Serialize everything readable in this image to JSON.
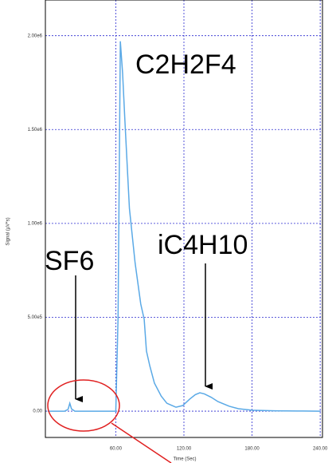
{
  "chart_data": {
    "type": "line",
    "x_label": "Time (Sec)",
    "y_label": "Signal (µV*s)",
    "x": [
      0,
      15,
      18,
      19.5,
      21,
      24,
      60,
      62,
      64,
      66,
      68,
      72,
      77,
      82,
      85,
      87,
      90,
      94,
      100,
      105,
      113,
      119,
      125,
      130,
      134,
      138,
      144,
      150,
      160,
      168,
      180,
      200,
      220,
      240
    ],
    "series": [
      {
        "color": "#5aa9e6",
        "values": [
          0,
          0,
          10000,
          42000,
          12000,
          0,
          0,
          500000,
          1970000,
          1800000,
          1550000,
          1080000,
          790000,
          570000,
          490000,
          320000,
          240000,
          150000,
          80000,
          42000,
          21000,
          30000,
          64000,
          88000,
          98000,
          92000,
          74000,
          51000,
          26000,
          13000,
          5000,
          2000,
          1000,
          0
        ]
      }
    ],
    "xlim": [
      -2,
      242
    ],
    "ylim": [
      -140000,
      2190000
    ],
    "xticks": [
      {
        "value": 60,
        "label": "60.00"
      },
      {
        "value": 120,
        "label": "120.00"
      },
      {
        "value": 180,
        "label": "180.00"
      },
      {
        "value": 240,
        "label": "240.00"
      }
    ],
    "yticks": [
      {
        "value": 0,
        "label": "0.00"
      },
      {
        "value": 500000,
        "label": "5.00e5"
      },
      {
        "value": 1000000,
        "label": "1.00e6"
      },
      {
        "value": 1500000,
        "label": "1.50e6"
      },
      {
        "value": 2000000,
        "label": "2.00e6"
      }
    ],
    "grid": true,
    "grid_color": "#2a2ad0",
    "annotations": [
      "C2H2F4",
      "SF6",
      "iC4H10"
    ]
  }
}
